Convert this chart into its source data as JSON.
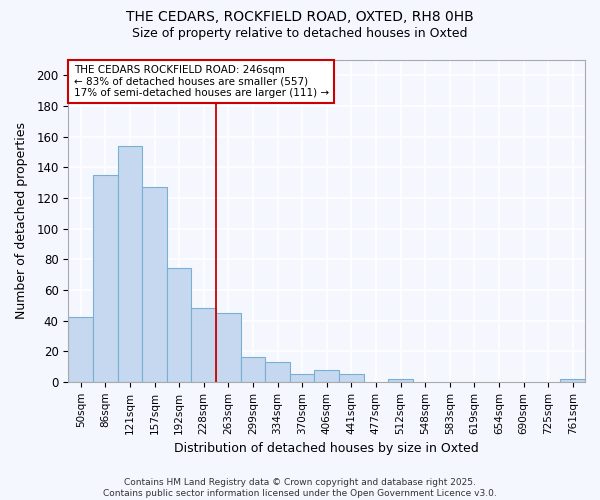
{
  "title1": "THE CEDARS, ROCKFIELD ROAD, OXTED, RH8 0HB",
  "title2": "Size of property relative to detached houses in Oxted",
  "xlabel": "Distribution of detached houses by size in Oxted",
  "ylabel": "Number of detached properties",
  "categories": [
    "50sqm",
    "86sqm",
    "121sqm",
    "157sqm",
    "192sqm",
    "228sqm",
    "263sqm",
    "299sqm",
    "334sqm",
    "370sqm",
    "406sqm",
    "441sqm",
    "477sqm",
    "512sqm",
    "548sqm",
    "583sqm",
    "619sqm",
    "654sqm",
    "690sqm",
    "725sqm",
    "761sqm"
  ],
  "values": [
    42,
    135,
    154,
    127,
    74,
    48,
    45,
    16,
    13,
    5,
    8,
    5,
    0,
    2,
    0,
    0,
    0,
    0,
    0,
    0,
    2
  ],
  "bar_color": "#c5d8f0",
  "bar_edge_color": "#7aafd4",
  "background_color": "#f5f7ff",
  "plot_bg_color": "#f5f7ff",
  "grid_color": "#ffffff",
  "vline_x": 5.5,
  "vline_color": "#cc0000",
  "annotation_line1": "THE CEDARS ROCKFIELD ROAD: 246sqm",
  "annotation_line2": "← 83% of detached houses are smaller (557)",
  "annotation_line3": "17% of semi-detached houses are larger (111) →",
  "annotation_box_color": "#cc0000",
  "ylim": [
    0,
    210
  ],
  "yticks": [
    0,
    20,
    40,
    60,
    80,
    100,
    120,
    140,
    160,
    180,
    200
  ],
  "footer": "Contains HM Land Registry data © Crown copyright and database right 2025.\nContains public sector information licensed under the Open Government Licence v3.0.",
  "figsize": [
    6.0,
    5.0
  ],
  "dpi": 100
}
